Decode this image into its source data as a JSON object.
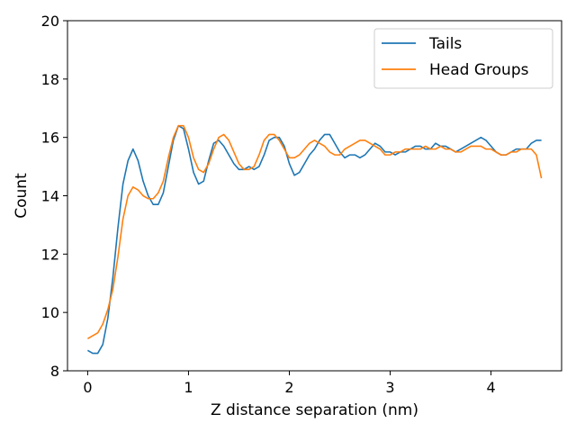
{
  "chart_data": {
    "type": "line",
    "title": "",
    "xlabel": "Z distance separation (nm)",
    "ylabel": "Count",
    "xlim": [
      -0.2,
      4.7
    ],
    "ylim": [
      8,
      20
    ],
    "xticks": [
      0,
      1,
      2,
      3,
      4
    ],
    "yticks": [
      8,
      10,
      12,
      14,
      16,
      18,
      20
    ],
    "grid": false,
    "legend_position": "top-right",
    "series": [
      {
        "name": "Tails",
        "color": "#1f77b4",
        "x": [
          0.0,
          0.05,
          0.1,
          0.15,
          0.2,
          0.25,
          0.3,
          0.35,
          0.4,
          0.45,
          0.5,
          0.55,
          0.6,
          0.65,
          0.7,
          0.75,
          0.8,
          0.85,
          0.9,
          0.95,
          1.0,
          1.05,
          1.1,
          1.15,
          1.2,
          1.25,
          1.3,
          1.35,
          1.4,
          1.45,
          1.5,
          1.55,
          1.6,
          1.65,
          1.7,
          1.75,
          1.8,
          1.85,
          1.9,
          1.95,
          2.0,
          2.05,
          2.1,
          2.15,
          2.2,
          2.25,
          2.3,
          2.35,
          2.4,
          2.45,
          2.5,
          2.55,
          2.6,
          2.65,
          2.7,
          2.75,
          2.8,
          2.85,
          2.9,
          2.95,
          3.0,
          3.05,
          3.1,
          3.15,
          3.2,
          3.25,
          3.3,
          3.35,
          3.4,
          3.45,
          3.5,
          3.55,
          3.6,
          3.65,
          3.7,
          3.75,
          3.8,
          3.85,
          3.9,
          3.95,
          4.0,
          4.05,
          4.1,
          4.15,
          4.2,
          4.25,
          4.3,
          4.35,
          4.4,
          4.45,
          4.5
        ],
        "values": [
          8.7,
          8.6,
          8.6,
          8.9,
          9.8,
          11.2,
          12.9,
          14.4,
          15.2,
          15.6,
          15.2,
          14.5,
          14.0,
          13.7,
          13.7,
          14.1,
          15.0,
          15.9,
          16.4,
          16.3,
          15.6,
          14.8,
          14.4,
          14.5,
          15.2,
          15.8,
          15.9,
          15.7,
          15.4,
          15.1,
          14.9,
          14.9,
          15.0,
          14.9,
          15.0,
          15.4,
          15.9,
          16.0,
          16.0,
          15.7,
          15.1,
          14.7,
          14.8,
          15.1,
          15.4,
          15.6,
          15.9,
          16.1,
          16.1,
          15.8,
          15.5,
          15.3,
          15.4,
          15.4,
          15.3,
          15.4,
          15.6,
          15.8,
          15.7,
          15.5,
          15.5,
          15.4,
          15.5,
          15.5,
          15.6,
          15.7,
          15.7,
          15.6,
          15.6,
          15.8,
          15.7,
          15.7,
          15.6,
          15.5,
          15.6,
          15.7,
          15.8,
          15.9,
          16.0,
          15.9,
          15.7,
          15.5,
          15.4,
          15.4,
          15.5,
          15.6,
          15.6,
          15.6,
          15.8,
          15.9,
          15.9
        ]
      },
      {
        "name": "Head Groups",
        "color": "#ff7f0e",
        "x": [
          0.0,
          0.05,
          0.1,
          0.15,
          0.2,
          0.25,
          0.3,
          0.35,
          0.4,
          0.45,
          0.5,
          0.55,
          0.6,
          0.65,
          0.7,
          0.75,
          0.8,
          0.85,
          0.9,
          0.95,
          1.0,
          1.05,
          1.1,
          1.15,
          1.2,
          1.25,
          1.3,
          1.35,
          1.4,
          1.45,
          1.5,
          1.55,
          1.6,
          1.65,
          1.7,
          1.75,
          1.8,
          1.85,
          1.9,
          1.95,
          2.0,
          2.05,
          2.1,
          2.15,
          2.2,
          2.25,
          2.3,
          2.35,
          2.4,
          2.45,
          2.5,
          2.55,
          2.6,
          2.65,
          2.7,
          2.75,
          2.8,
          2.85,
          2.9,
          2.95,
          3.0,
          3.05,
          3.1,
          3.15,
          3.2,
          3.25,
          3.3,
          3.35,
          3.4,
          3.45,
          3.5,
          3.55,
          3.6,
          3.65,
          3.7,
          3.75,
          3.8,
          3.85,
          3.9,
          3.95,
          4.0,
          4.05,
          4.1,
          4.15,
          4.2,
          4.25,
          4.3,
          4.35,
          4.4,
          4.45,
          4.5
        ],
        "values": [
          9.1,
          9.2,
          9.3,
          9.6,
          10.1,
          10.8,
          11.9,
          13.2,
          14.0,
          14.3,
          14.2,
          14.0,
          13.9,
          13.9,
          14.1,
          14.5,
          15.3,
          16.0,
          16.4,
          16.4,
          16.0,
          15.3,
          14.9,
          14.8,
          15.1,
          15.6,
          16.0,
          16.1,
          15.9,
          15.5,
          15.1,
          14.9,
          14.9,
          15.0,
          15.4,
          15.9,
          16.1,
          16.1,
          15.9,
          15.6,
          15.3,
          15.3,
          15.4,
          15.6,
          15.8,
          15.9,
          15.8,
          15.7,
          15.5,
          15.4,
          15.4,
          15.6,
          15.7,
          15.8,
          15.9,
          15.9,
          15.8,
          15.7,
          15.6,
          15.4,
          15.4,
          15.5,
          15.5,
          15.6,
          15.6,
          15.6,
          15.6,
          15.7,
          15.6,
          15.6,
          15.7,
          15.6,
          15.6,
          15.5,
          15.5,
          15.6,
          15.7,
          15.7,
          15.7,
          15.6,
          15.6,
          15.5,
          15.4,
          15.4,
          15.5,
          15.5,
          15.6,
          15.6,
          15.6,
          15.4,
          14.6
        ]
      }
    ]
  }
}
